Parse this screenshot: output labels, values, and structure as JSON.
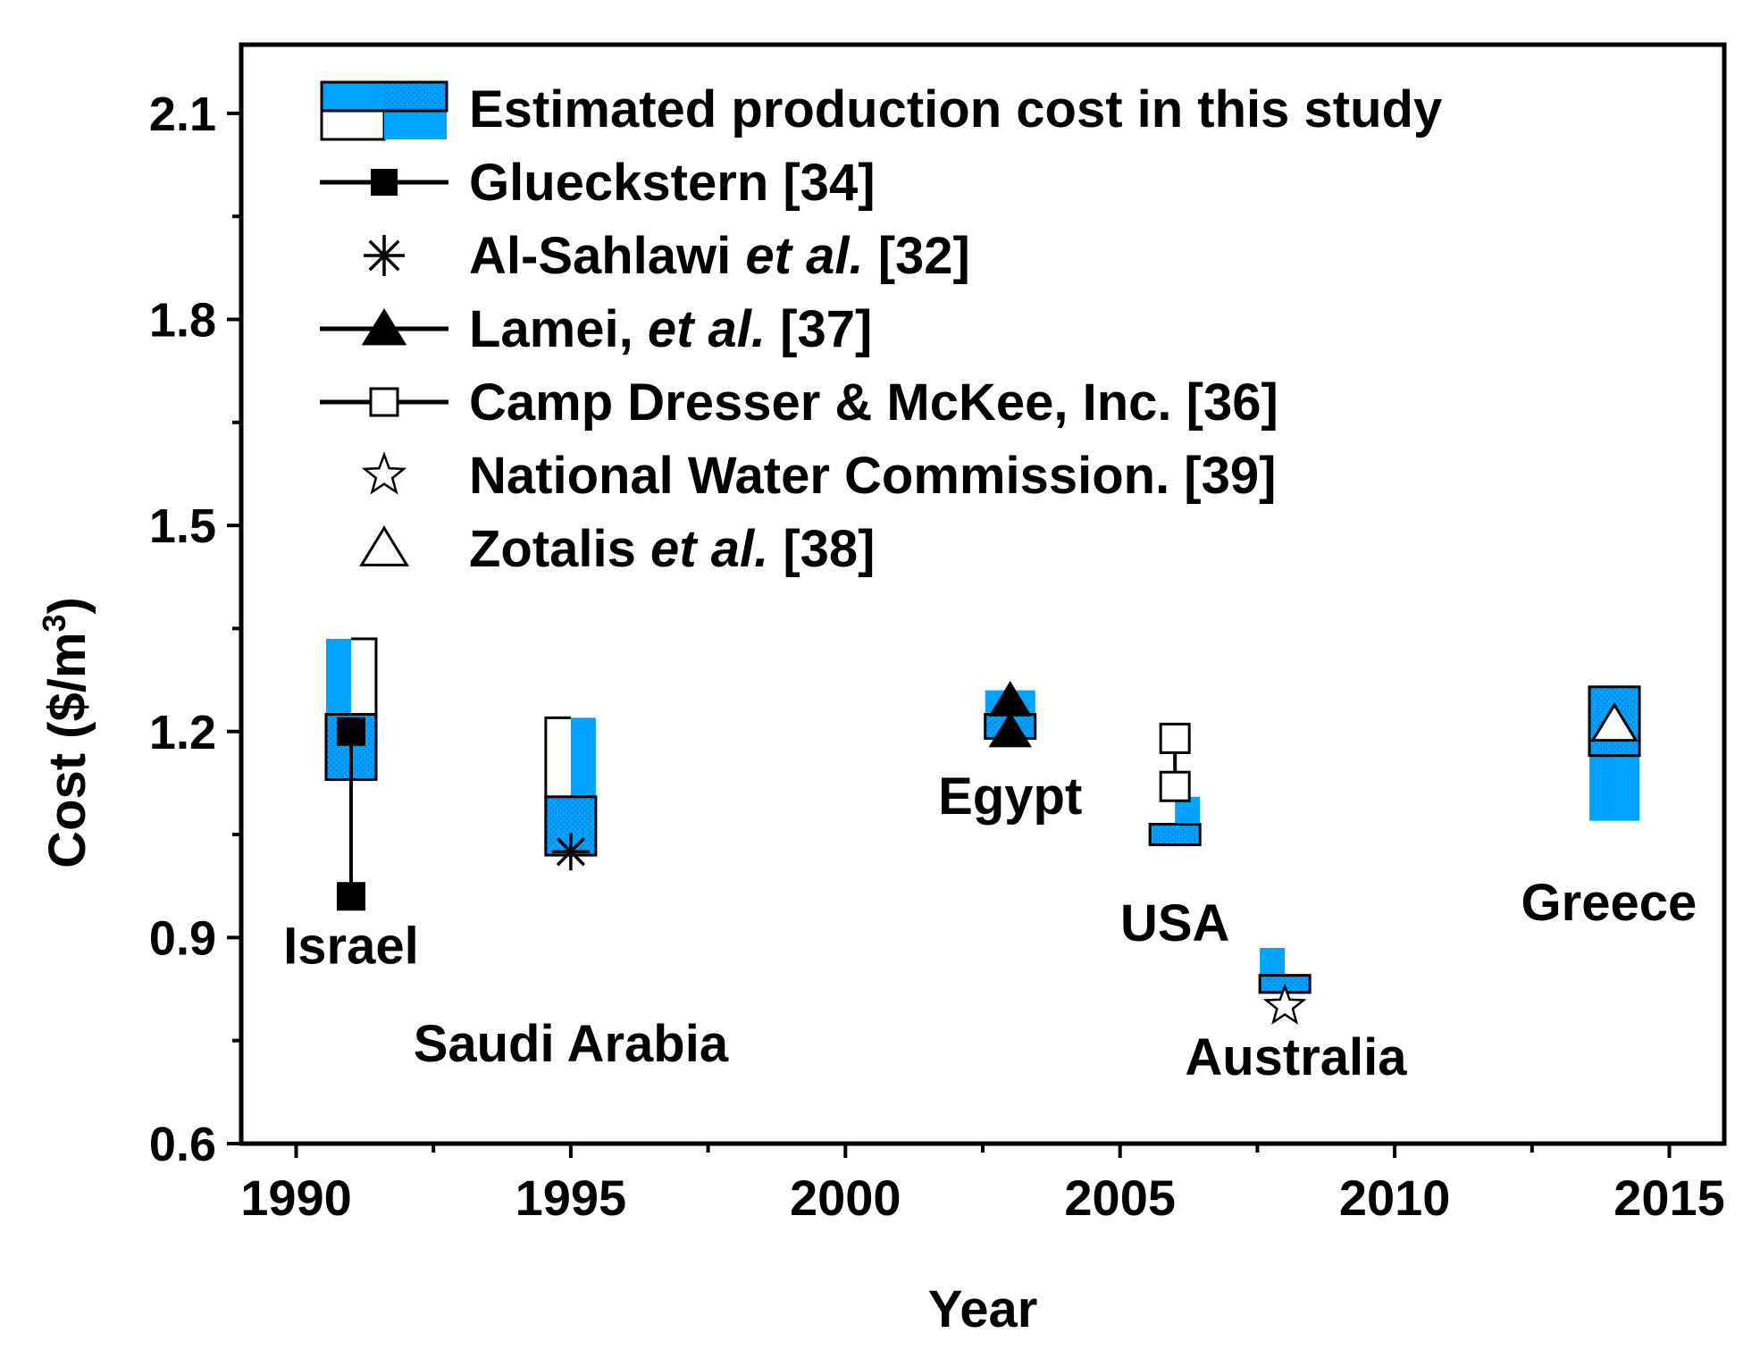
{
  "chart_data": {
    "type": "box-marker",
    "title": "",
    "xlabel": "Year",
    "ylabel": "Cost ($/m",
    "ylabel_superscript": "3",
    "ylabel_close": ")",
    "xlim": [
      1989,
      2016
    ],
    "ylim": [
      0.6,
      2.2
    ],
    "xticks": [
      1990,
      1995,
      2000,
      2005,
      2010,
      2015
    ],
    "xticks_minor": [
      1992.5,
      1997.5,
      2002.5,
      2007.5,
      2012.5
    ],
    "yticks": [
      0.6,
      0.9,
      1.2,
      1.5,
      1.8,
      2.1
    ],
    "yticks_minor": [
      0.75,
      1.05,
      1.35,
      1.65,
      1.95
    ],
    "xtick_labels": [
      "1990",
      "1995",
      "2000",
      "2005",
      "2010",
      "2015"
    ],
    "ytick_labels": [
      "0.6",
      "0.9",
      "1.2",
      "1.5",
      "1.8",
      "2.1"
    ],
    "colors": {
      "blue": "#00a2ff",
      "dot": "#1a70c0",
      "black": "#000000"
    },
    "legend": {
      "placement": "top-left",
      "entries": [
        {
          "id": "estimated",
          "parts": [
            {
              "t": "Estimated production cost in this study",
              "i": false
            }
          ]
        },
        {
          "id": "glueckstern",
          "parts": [
            {
              "t": "Glueckstern [34]",
              "i": false
            }
          ]
        },
        {
          "id": "alsahlawi",
          "parts": [
            {
              "t": "Al-Sahlawi ",
              "i": false
            },
            {
              "t": "et al.",
              "i": true
            },
            {
              "t": " [32]",
              "i": false
            }
          ]
        },
        {
          "id": "lamei",
          "parts": [
            {
              "t": "Lamei, ",
              "i": false
            },
            {
              "t": "et al.",
              "i": true
            },
            {
              "t": " [37]",
              "i": false
            }
          ]
        },
        {
          "id": "cdm",
          "parts": [
            {
              "t": "Camp Dresser & McKee, Inc. [36]",
              "i": false
            }
          ]
        },
        {
          "id": "nwc",
          "parts": [
            {
              "t": "National Water Commission. [39]",
              "i": false
            }
          ]
        },
        {
          "id": "zotalis",
          "parts": [
            {
              "t": "Zotalis ",
              "i": false
            },
            {
              "t": "et al.",
              "i": true
            },
            {
              "t": " [38]",
              "i": false
            }
          ]
        }
      ]
    },
    "boxes": [
      {
        "country": "Israel",
        "x": 1991,
        "half_left": {
          "fill": "blue",
          "low": 1.13,
          "high": 1.335
        },
        "half_right": {
          "fill": "white",
          "low": 1.13,
          "high": 1.335
        },
        "frame_low": 1.13,
        "frame_high": 1.225,
        "frame_fill": "blue"
      },
      {
        "country": "Saudi Arabia",
        "x": 1995,
        "half_left": {
          "fill": "white",
          "low": 1.02,
          "high": 1.22
        },
        "half_right": {
          "fill": "blue",
          "low": 1.02,
          "high": 1.22
        },
        "frame_low": 1.02,
        "frame_high": 1.105,
        "frame_fill": "blue"
      },
      {
        "country": "Egypt",
        "x": 2003,
        "half_left": {
          "fill": "blue",
          "low": 1.19,
          "high": 1.26
        },
        "half_right": {
          "fill": "blue",
          "low": 1.19,
          "high": 1.26
        },
        "frame_low": 1.19,
        "frame_high": 1.225,
        "frame_fill": "blue"
      },
      {
        "country": "USA",
        "x": 2006,
        "half_left": {
          "fill": "blue",
          "low": 1.035,
          "high": 1.065
        },
        "half_right": {
          "fill": "blue",
          "low": 1.035,
          "high": 1.105
        },
        "frame_low": 1.035,
        "frame_high": 1.065,
        "frame_fill": "blue"
      },
      {
        "country": "Australia",
        "x": 2008,
        "half_left": {
          "fill": "blue",
          "low": 0.82,
          "high": 0.885
        },
        "half_right": {
          "fill": "blue",
          "low": 0.82,
          "high": 0.845
        },
        "frame_low": 0.82,
        "frame_high": 0.845,
        "frame_fill": "blue"
      },
      {
        "country": "Greece",
        "x": 2014,
        "half_left": {
          "fill": "blue",
          "low": 1.07,
          "high": 1.265
        },
        "half_right": {
          "fill": "blue",
          "low": 1.07,
          "high": 1.265
        },
        "frame_low": 1.165,
        "frame_high": 1.265,
        "frame_fill": "blue"
      }
    ],
    "series": [
      {
        "name": "Glueckstern [34]",
        "marker": "filled-square",
        "line": true,
        "points": [
          [
            1991,
            1.2
          ],
          [
            1991,
            0.96
          ]
        ]
      },
      {
        "name": "Al-Sahlawi et al. [32]",
        "marker": "asterisk",
        "line": false,
        "points": [
          [
            1995,
            1.025
          ]
        ]
      },
      {
        "name": "Lamei, et al. [37]",
        "marker": "filled-triangle",
        "line": true,
        "points": [
          [
            2003,
            1.245
          ],
          [
            2003,
            1.2
          ]
        ]
      },
      {
        "name": "Camp Dresser & McKee, Inc. [36]",
        "marker": "open-square",
        "line": true,
        "points": [
          [
            2006,
            1.19
          ],
          [
            2006,
            1.12
          ]
        ]
      },
      {
        "name": "National Water Commission. [39]",
        "marker": "open-star",
        "line": false,
        "points": [
          [
            2008,
            0.8
          ]
        ]
      },
      {
        "name": "Zotalis et al. [38]",
        "marker": "open-triangle",
        "line": false,
        "points": [
          [
            2014,
            1.21
          ]
        ]
      }
    ],
    "annotations": [
      {
        "text": "Israel",
        "x": 1991,
        "y": 0.862
      },
      {
        "text": "Saudi Arabia",
        "x": 1995,
        "y": 0.72
      },
      {
        "text": "Egypt",
        "x": 2003,
        "y": 1.08
      },
      {
        "text": "USA",
        "x": 2006,
        "y": 0.895
      },
      {
        "text": "Australia",
        "x": 2008.2,
        "y": 0.7
      },
      {
        "text": "Greece",
        "x": 2013.9,
        "y": 0.925
      }
    ]
  }
}
